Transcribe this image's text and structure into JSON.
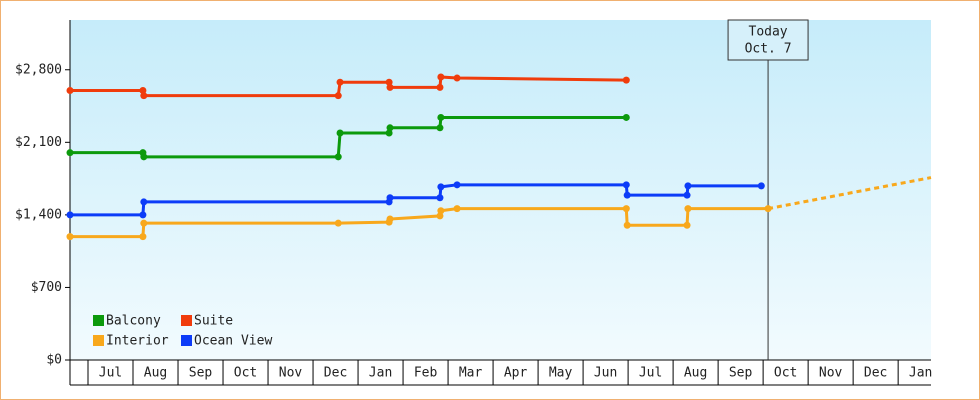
{
  "chart_data": {
    "type": "step-line",
    "xlim": [
      -0.4,
      18.73
    ],
    "xticks": [
      {
        "value": 0.5,
        "label": "Jul"
      },
      {
        "value": 1.5,
        "label": "Aug"
      },
      {
        "value": 2.5,
        "label": "Sep"
      },
      {
        "value": 3.5,
        "label": "Oct"
      },
      {
        "value": 4.5,
        "label": "Nov"
      },
      {
        "value": 5.5,
        "label": "Dec"
      },
      {
        "value": 6.5,
        "label": "Jan"
      },
      {
        "value": 7.5,
        "label": "Feb"
      },
      {
        "value": 8.5,
        "label": "Mar"
      },
      {
        "value": 9.5,
        "label": "Apr"
      },
      {
        "value": 10.5,
        "label": "May"
      },
      {
        "value": 11.5,
        "label": "Jun"
      },
      {
        "value": 12.5,
        "label": "Jul"
      },
      {
        "value": 13.5,
        "label": "Aug"
      },
      {
        "value": 14.5,
        "label": "Sep"
      },
      {
        "value": 15.5,
        "label": "Oct"
      },
      {
        "value": 16.5,
        "label": "Nov"
      },
      {
        "value": 17.5,
        "label": "Dec"
      },
      {
        "value": 18.5,
        "label": "Jan"
      }
    ],
    "ylim": [
      0,
      3280
    ],
    "yticks": [
      {
        "value": 0,
        "label": "$0"
      },
      {
        "value": 700,
        "label": "$700"
      },
      {
        "value": 1400,
        "label": "$1,400"
      },
      {
        "value": 2100,
        "label": "$2,100"
      },
      {
        "value": 2800,
        "label": "$2,800"
      }
    ],
    "today": {
      "x": 15.11,
      "label": [
        "Today",
        "Oct. 7"
      ]
    },
    "series": [
      {
        "name": "Balcony",
        "color": "#0c9a0c",
        "x": [
          -0.4,
          1.22,
          1.24,
          5.56,
          5.6,
          6.69,
          6.71,
          7.82,
          7.84,
          11.96
        ],
        "values": [
          2000,
          2000,
          1960,
          1960,
          2190,
          2190,
          2240,
          2240,
          2340,
          2340
        ]
      },
      {
        "name": "Suite",
        "color": "#f03c0c",
        "x": [
          -0.4,
          1.22,
          1.24,
          5.56,
          5.6,
          6.69,
          6.71,
          7.82,
          7.84,
          8.2,
          11.96
        ],
        "values": [
          2600,
          2600,
          2550,
          2550,
          2680,
          2680,
          2630,
          2630,
          2730,
          2720,
          2700
        ]
      },
      {
        "name": "Interior",
        "color": "#f8a81c",
        "x": [
          -0.4,
          1.22,
          1.24,
          5.56,
          6.69,
          6.71,
          7.82,
          7.84,
          8.2,
          11.96,
          11.98,
          13.31,
          13.33,
          15.11
        ],
        "values": [
          1190,
          1190,
          1320,
          1320,
          1330,
          1360,
          1390,
          1440,
          1460,
          1460,
          1300,
          1300,
          1460,
          1460
        ],
        "projection": {
          "x": [
            15.11,
            18.73
          ],
          "values": [
            1460,
            1760
          ]
        }
      },
      {
        "name": "Ocean View",
        "color": "#0c3cf8",
        "x": [
          -0.4,
          1.22,
          1.24,
          6.69,
          6.71,
          7.82,
          7.84,
          8.2,
          11.96,
          11.98,
          13.31,
          13.33,
          14.96
        ],
        "values": [
          1400,
          1400,
          1525,
          1525,
          1565,
          1565,
          1670,
          1690,
          1690,
          1590,
          1590,
          1680,
          1680
        ]
      }
    ]
  }
}
